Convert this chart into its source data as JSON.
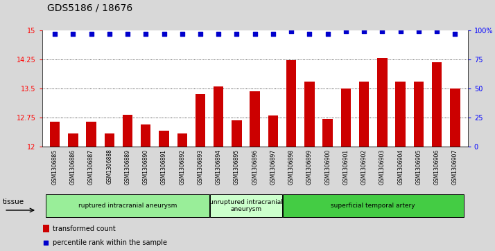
{
  "title": "GDS5186 / 18676",
  "samples": [
    "GSM1306885",
    "GSM1306886",
    "GSM1306887",
    "GSM1306888",
    "GSM1306889",
    "GSM1306890",
    "GSM1306891",
    "GSM1306892",
    "GSM1306893",
    "GSM1306894",
    "GSM1306895",
    "GSM1306896",
    "GSM1306897",
    "GSM1306898",
    "GSM1306899",
    "GSM1306900",
    "GSM1306901",
    "GSM1306902",
    "GSM1306903",
    "GSM1306904",
    "GSM1306905",
    "GSM1306906",
    "GSM1306907"
  ],
  "bar_values": [
    12.65,
    12.35,
    12.65,
    12.35,
    12.82,
    12.58,
    12.42,
    12.35,
    13.35,
    13.55,
    12.68,
    13.42,
    12.8,
    14.22,
    13.68,
    12.72,
    13.5,
    13.68,
    14.28,
    13.68,
    13.68,
    14.18,
    13.5
  ],
  "percentile_values": [
    97,
    97,
    97,
    97,
    97,
    97,
    97,
    97,
    97,
    97,
    97,
    97,
    97,
    99,
    97,
    97,
    99,
    99,
    99,
    99,
    99,
    99,
    97
  ],
  "ylim_left": [
    12,
    15
  ],
  "ylim_right": [
    0,
    100
  ],
  "yticks_left": [
    12,
    12.75,
    13.5,
    14.25,
    15
  ],
  "yticks_right": [
    0,
    25,
    50,
    75,
    100
  ],
  "grid_lines": [
    12.75,
    13.5,
    14.25
  ],
  "bar_color": "#cc0000",
  "dot_color": "#0000cc",
  "bg_color": "#d8d8d8",
  "plot_bg": "#ffffff",
  "tick_bg": "#d8d8d8",
  "groups": [
    {
      "label": "ruptured intracranial aneurysm",
      "start": 0,
      "end": 8,
      "color": "#99ee99"
    },
    {
      "label": "unruptured intracranial\naneurysm",
      "start": 9,
      "end": 12,
      "color": "#ccffcc"
    },
    {
      "label": "superficial temporal artery",
      "start": 13,
      "end": 22,
      "color": "#44cc44"
    }
  ],
  "legend_bar_label": "transformed count",
  "legend_dot_label": "percentile rank within the sample",
  "xlabel_tissue": "tissue",
  "title_fontsize": 10,
  "tick_fontsize": 7,
  "label_fontsize": 7.5
}
